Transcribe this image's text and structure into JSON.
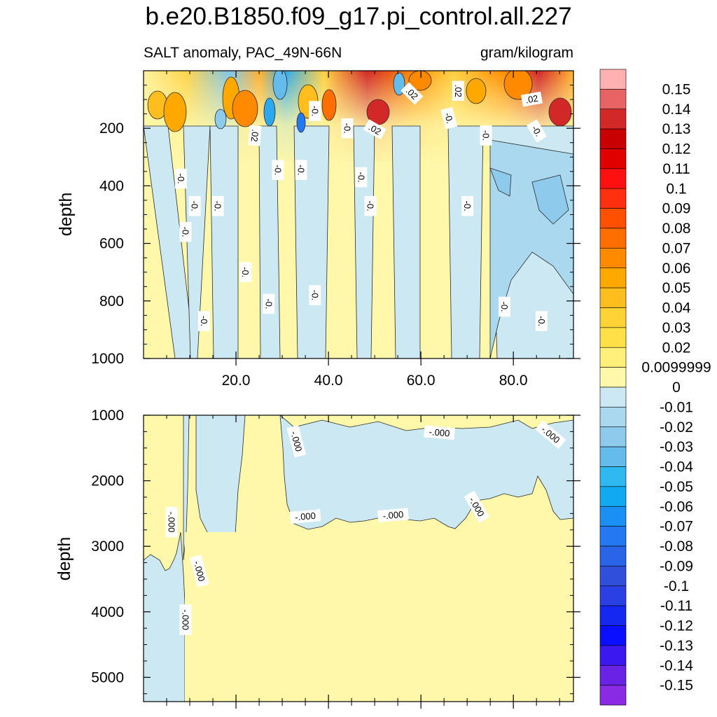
{
  "chart_data": {
    "type": "heatmap",
    "title": "b.e20.B1850.f09_g17.pi_control.all.227",
    "left_subtitle": "SALT anomaly, PAC_49N-66N",
    "right_subtitle": "gram/kilogram",
    "x_ticks": [
      "20.0",
      "40.0",
      "60.0",
      "80.0"
    ],
    "x_range": [
      0,
      93
    ],
    "panels": [
      {
        "name": "upper",
        "ylabel": "depth",
        "y_range": [
          0,
          1000
        ],
        "y_ticks": [
          "200",
          "400",
          "600",
          "800",
          "1000"
        ],
        "contour_labels": [
          {
            "text": ".02",
            "x": 24,
            "y": 225,
            "rot": 95
          },
          {
            "text": ".02",
            "x": 50,
            "y": 205,
            "rot": 30
          },
          {
            "text": ".02",
            "x": 58,
            "y": 80,
            "rot": 45
          },
          {
            "text": ".02",
            "x": 68,
            "y": 70,
            "rot": 90
          },
          {
            "text": ".02",
            "x": 84,
            "y": 100,
            "rot": -10
          },
          {
            "text": "-0.",
            "x": 37,
            "y": 140,
            "rot": 90
          },
          {
            "text": "-0.",
            "x": 44,
            "y": 200,
            "rot": 90
          },
          {
            "text": "-0.",
            "x": 66,
            "y": 165,
            "rot": 75
          },
          {
            "text": "-0.",
            "x": 74,
            "y": 225,
            "rot": 90
          },
          {
            "text": "-0.",
            "x": 85,
            "y": 210,
            "rot": 60
          },
          {
            "text": "-0.",
            "x": 8,
            "y": 375,
            "rot": 90
          },
          {
            "text": "-0.",
            "x": 29,
            "y": 345,
            "rot": 90
          },
          {
            "text": "-0.",
            "x": 34,
            "y": 345,
            "rot": 90
          },
          {
            "text": "-0.",
            "x": 47,
            "y": 370,
            "rot": 90
          },
          {
            "text": "-0.",
            "x": 11,
            "y": 470,
            "rot": 90
          },
          {
            "text": "-0.",
            "x": 16,
            "y": 470,
            "rot": 90
          },
          {
            "text": "-0.",
            "x": 49,
            "y": 470,
            "rot": 90
          },
          {
            "text": "-0.",
            "x": 70,
            "y": 470,
            "rot": 90
          },
          {
            "text": "-0.",
            "x": 9,
            "y": 560,
            "rot": 90
          },
          {
            "text": "-0.",
            "x": 22,
            "y": 700,
            "rot": 90
          },
          {
            "text": "-0.",
            "x": 27,
            "y": 810,
            "rot": 90
          },
          {
            "text": "-0.",
            "x": 37,
            "y": 780,
            "rot": 90
          },
          {
            "text": "-0.",
            "x": 13,
            "y": 870,
            "rot": 90
          },
          {
            "text": "-0.",
            "x": 78,
            "y": 820,
            "rot": 90
          },
          {
            "text": "-0.",
            "x": 86,
            "y": 870,
            "rot": 90
          }
        ]
      },
      {
        "name": "lower",
        "ylabel": "depth",
        "y_range": [
          1000,
          5370
        ],
        "y_ticks": [
          "1000",
          "2000",
          "3000",
          "4000",
          "5000"
        ],
        "contour_labels": [
          {
            "text": "-.000",
            "x": 33,
            "y": 1400,
            "rot": 75
          },
          {
            "text": "-.000",
            "x": 64,
            "y": 1270,
            "rot": 5
          },
          {
            "text": "-.000",
            "x": 88,
            "y": 1300,
            "rot": 40
          },
          {
            "text": "-.000",
            "x": 35,
            "y": 2550,
            "rot": -5
          },
          {
            "text": "-.000",
            "x": 54,
            "y": 2530,
            "rot": -5
          },
          {
            "text": "-.000",
            "x": 72,
            "y": 2400,
            "rot": 60
          },
          {
            "text": "-.000",
            "x": 6,
            "y": 2630,
            "rot": 90
          },
          {
            "text": "-.000",
            "x": 12,
            "y": 3380,
            "rot": 75
          },
          {
            "text": "-.000",
            "x": 9,
            "y": 4120,
            "rot": 90
          }
        ]
      }
    ],
    "colorbar": {
      "labels": [
        "0.15",
        "0.14",
        "0.13",
        "0.12",
        "0.11",
        "0.1",
        "0.09",
        "0.08",
        "0.07",
        "0.06",
        "0.05",
        "0.04",
        "0.03",
        "0.02",
        "0.0099999",
        "0",
        "-0.01",
        "-0.02",
        "-0.03",
        "-0.04",
        "-0.05",
        "-0.06",
        "-0.07",
        "-0.08",
        "-0.09",
        "-0.1",
        "-0.11",
        "-0.12",
        "-0.13",
        "-0.14",
        "-0.15"
      ],
      "colors": [
        "#ffb0b0",
        "#e86464",
        "#d22828",
        "#c80000",
        "#e00000",
        "#ff1010",
        "#ff3010",
        "#ff5000",
        "#ff6e00",
        "#ff8a00",
        "#ffa800",
        "#ffbe1e",
        "#ffd236",
        "#ffe046",
        "#fff07a",
        "#fff8aa",
        "#cce8f2",
        "#aad8ee",
        "#8ecaec",
        "#64bcec",
        "#2ebaf0",
        "#10aaf2",
        "#1a90f4",
        "#2478f2",
        "#2a64e8",
        "#3050dc",
        "#2a40e4",
        "#1428f2",
        "#0a10ff",
        "#3a18ee",
        "#6a22e4",
        "#8a2ae4"
      ]
    },
    "grid": false
  }
}
